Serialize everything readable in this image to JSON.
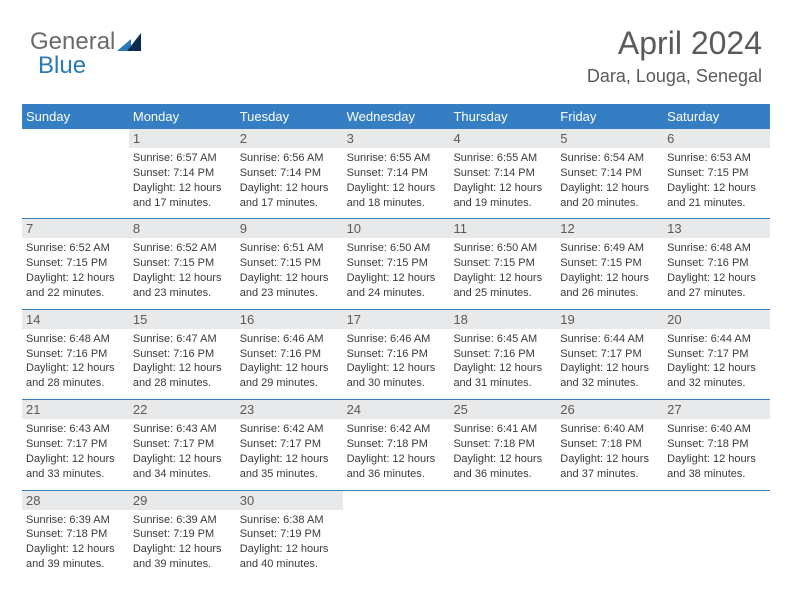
{
  "logo": {
    "part1": "General",
    "part2": "Blue"
  },
  "title": "April 2024",
  "location": "Dara, Louga, Senegal",
  "colors": {
    "header_bg": "#357ec4",
    "header_text": "#ffffff",
    "daynum_bg": "#e8e9ea",
    "text_gray": "#5a5a5a",
    "body_text": "#3a3a3a",
    "logo_gray": "#6a6a6a",
    "logo_blue": "#2a7ab8",
    "logo_dark": "#0a2a50"
  },
  "fonts": {
    "title_size": 32,
    "location_size": 18,
    "weekday_size": 13,
    "daynum_size": 13,
    "info_size": 11
  },
  "weekdays": [
    "Sunday",
    "Monday",
    "Tuesday",
    "Wednesday",
    "Thursday",
    "Friday",
    "Saturday"
  ],
  "weeks": [
    [
      {
        "n": "",
        "sr": "",
        "ss": "",
        "dl": ""
      },
      {
        "n": "1",
        "sr": "6:57 AM",
        "ss": "7:14 PM",
        "dl": "12 hours and 17 minutes."
      },
      {
        "n": "2",
        "sr": "6:56 AM",
        "ss": "7:14 PM",
        "dl": "12 hours and 17 minutes."
      },
      {
        "n": "3",
        "sr": "6:55 AM",
        "ss": "7:14 PM",
        "dl": "12 hours and 18 minutes."
      },
      {
        "n": "4",
        "sr": "6:55 AM",
        "ss": "7:14 PM",
        "dl": "12 hours and 19 minutes."
      },
      {
        "n": "5",
        "sr": "6:54 AM",
        "ss": "7:14 PM",
        "dl": "12 hours and 20 minutes."
      },
      {
        "n": "6",
        "sr": "6:53 AM",
        "ss": "7:15 PM",
        "dl": "12 hours and 21 minutes."
      }
    ],
    [
      {
        "n": "7",
        "sr": "6:52 AM",
        "ss": "7:15 PM",
        "dl": "12 hours and 22 minutes."
      },
      {
        "n": "8",
        "sr": "6:52 AM",
        "ss": "7:15 PM",
        "dl": "12 hours and 23 minutes."
      },
      {
        "n": "9",
        "sr": "6:51 AM",
        "ss": "7:15 PM",
        "dl": "12 hours and 23 minutes."
      },
      {
        "n": "10",
        "sr": "6:50 AM",
        "ss": "7:15 PM",
        "dl": "12 hours and 24 minutes."
      },
      {
        "n": "11",
        "sr": "6:50 AM",
        "ss": "7:15 PM",
        "dl": "12 hours and 25 minutes."
      },
      {
        "n": "12",
        "sr": "6:49 AM",
        "ss": "7:15 PM",
        "dl": "12 hours and 26 minutes."
      },
      {
        "n": "13",
        "sr": "6:48 AM",
        "ss": "7:16 PM",
        "dl": "12 hours and 27 minutes."
      }
    ],
    [
      {
        "n": "14",
        "sr": "6:48 AM",
        "ss": "7:16 PM",
        "dl": "12 hours and 28 minutes."
      },
      {
        "n": "15",
        "sr": "6:47 AM",
        "ss": "7:16 PM",
        "dl": "12 hours and 28 minutes."
      },
      {
        "n": "16",
        "sr": "6:46 AM",
        "ss": "7:16 PM",
        "dl": "12 hours and 29 minutes."
      },
      {
        "n": "17",
        "sr": "6:46 AM",
        "ss": "7:16 PM",
        "dl": "12 hours and 30 minutes."
      },
      {
        "n": "18",
        "sr": "6:45 AM",
        "ss": "7:16 PM",
        "dl": "12 hours and 31 minutes."
      },
      {
        "n": "19",
        "sr": "6:44 AM",
        "ss": "7:17 PM",
        "dl": "12 hours and 32 minutes."
      },
      {
        "n": "20",
        "sr": "6:44 AM",
        "ss": "7:17 PM",
        "dl": "12 hours and 32 minutes."
      }
    ],
    [
      {
        "n": "21",
        "sr": "6:43 AM",
        "ss": "7:17 PM",
        "dl": "12 hours and 33 minutes."
      },
      {
        "n": "22",
        "sr": "6:43 AM",
        "ss": "7:17 PM",
        "dl": "12 hours and 34 minutes."
      },
      {
        "n": "23",
        "sr": "6:42 AM",
        "ss": "7:17 PM",
        "dl": "12 hours and 35 minutes."
      },
      {
        "n": "24",
        "sr": "6:42 AM",
        "ss": "7:18 PM",
        "dl": "12 hours and 36 minutes."
      },
      {
        "n": "25",
        "sr": "6:41 AM",
        "ss": "7:18 PM",
        "dl": "12 hours and 36 minutes."
      },
      {
        "n": "26",
        "sr": "6:40 AM",
        "ss": "7:18 PM",
        "dl": "12 hours and 37 minutes."
      },
      {
        "n": "27",
        "sr": "6:40 AM",
        "ss": "7:18 PM",
        "dl": "12 hours and 38 minutes."
      }
    ],
    [
      {
        "n": "28",
        "sr": "6:39 AM",
        "ss": "7:18 PM",
        "dl": "12 hours and 39 minutes."
      },
      {
        "n": "29",
        "sr": "6:39 AM",
        "ss": "7:19 PM",
        "dl": "12 hours and 39 minutes."
      },
      {
        "n": "30",
        "sr": "6:38 AM",
        "ss": "7:19 PM",
        "dl": "12 hours and 40 minutes."
      },
      {
        "n": "",
        "sr": "",
        "ss": "",
        "dl": ""
      },
      {
        "n": "",
        "sr": "",
        "ss": "",
        "dl": ""
      },
      {
        "n": "",
        "sr": "",
        "ss": "",
        "dl": ""
      },
      {
        "n": "",
        "sr": "",
        "ss": "",
        "dl": ""
      }
    ]
  ],
  "labels": {
    "sunrise": "Sunrise:",
    "sunset": "Sunset:",
    "daylight": "Daylight:"
  }
}
